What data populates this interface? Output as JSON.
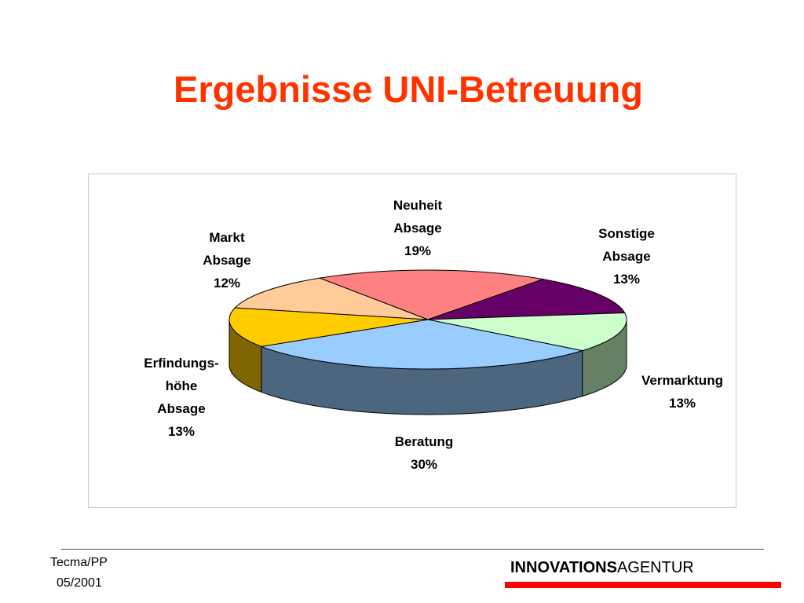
{
  "chart_data": {
    "type": "pie3d",
    "title": "Ergebnisse UNI-Betreuung",
    "categories": [
      "Neuheit Absage",
      "Sonstige Absage",
      "Vermarktung",
      "Beratung",
      "Erfindungs-höhe Absage",
      "Markt Absage"
    ],
    "values": [
      19,
      13,
      13,
      30,
      13,
      12
    ],
    "value_labels": [
      "19%",
      "13%",
      "13%",
      "30%",
      "13%",
      "12%"
    ],
    "colors": [
      "#ff8080",
      "#660066",
      "#ccffcc",
      "#99ccff",
      "#ffcc00",
      "#ffcc99"
    ]
  },
  "footer": {
    "left": [
      "Tecma/PP",
      "05/2001"
    ],
    "brand_bold": "INNOVATIONS",
    "brand_regular": "AGENTUR"
  }
}
